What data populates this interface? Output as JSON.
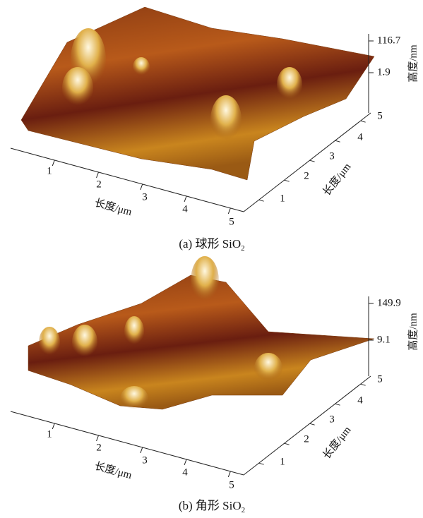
{
  "panels": [
    {
      "caption": {
        "prefix": "(a) 球形 SiO",
        "subscript": "2"
      },
      "x_axis": {
        "label": "长度/μm",
        "ticks": [
          "1",
          "2",
          "3",
          "4",
          "5"
        ]
      },
      "y_axis": {
        "label": "长度/μm",
        "ticks": [
          "1",
          "2",
          "3",
          "4",
          "5"
        ]
      },
      "z_axis": {
        "label": "高度/nm",
        "ticks": [
          "116.7",
          "1.9"
        ]
      }
    },
    {
      "caption": {
        "prefix": "(b) 角形 SiO",
        "subscript": "2"
      },
      "x_axis": {
        "label": "长度/μm",
        "ticks": [
          "1",
          "2",
          "3",
          "4",
          "5"
        ]
      },
      "y_axis": {
        "label": "长度/μm",
        "ticks": [
          "1",
          "2",
          "3",
          "4",
          "5"
        ]
      },
      "z_axis": {
        "label": "高度/nm",
        "ticks": [
          "149.9",
          "9.1"
        ]
      }
    }
  ]
}
